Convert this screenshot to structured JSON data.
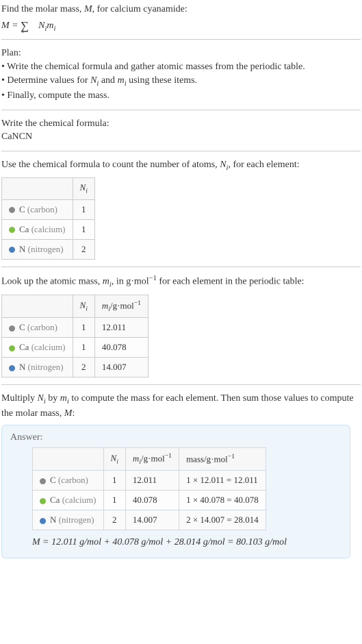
{
  "intro": {
    "line1_pre": "Find the molar mass, ",
    "line1_var": "M",
    "line1_post": ", for calcium cyanamide:",
    "formula_lhs": "M",
    "formula_rhs": "Nᵢmᵢ"
  },
  "plan": {
    "title": "Plan:",
    "b1": "• Write the chemical formula and gather atomic masses from the periodic table.",
    "b2_pre": "• Determine values for ",
    "b2_n": "N",
    "b2_i1": "i",
    "b2_mid": " and ",
    "b2_m": "m",
    "b2_i2": "i",
    "b2_post": " using these items.",
    "b3": "• Finally, compute the mass."
  },
  "chem": {
    "title": "Write the chemical formula:",
    "formula": "CaNCN"
  },
  "count": {
    "intro_pre": "Use the chemical formula to count the number of atoms, ",
    "intro_var": "N",
    "intro_sub": "i",
    "intro_post": ", for each element:",
    "hdr_N": "N",
    "hdr_Ni": "i"
  },
  "elements": [
    {
      "sym": "C",
      "name": "(carbon)",
      "color": "#888888",
      "N": "1",
      "m": "12.011",
      "mass": "1 × 12.011 = 12.011"
    },
    {
      "sym": "Ca",
      "name": "(calcium)",
      "color": "#7fbf3f",
      "N": "1",
      "m": "40.078",
      "mass": "1 × 40.078 = 40.078"
    },
    {
      "sym": "N",
      "name": "(nitrogen)",
      "color": "#4a7fbf",
      "N": "2",
      "m": "14.007",
      "mass": "2 × 14.007 = 28.014"
    }
  ],
  "atomic": {
    "intro_pre": "Look up the atomic mass, ",
    "intro_var": "m",
    "intro_sub": "i",
    "intro_mid": ", in g·mol",
    "intro_sup": "−1",
    "intro_post": " for each element in the periodic table:",
    "hdr_m_pre": "m",
    "hdr_m_sub": "i",
    "hdr_m_mid": "/g·mol",
    "hdr_m_sup": "−1"
  },
  "multiply": {
    "line_pre": "Multiply ",
    "n": "N",
    "ni": "i",
    "mid": " by ",
    "m": "m",
    "mi": "i",
    "post": " to compute the mass for each element. Then sum those values to compute the molar mass, ",
    "mm": "M",
    "end": ":"
  },
  "answer": {
    "label": "Answer:",
    "hdr_mass_pre": "mass/g·mol",
    "hdr_mass_sup": "−1",
    "final_pre": "M",
    "final_eq": " = 12.011 g/mol + 40.078 g/mol + 28.014 g/mol = 80.103 g/mol"
  }
}
